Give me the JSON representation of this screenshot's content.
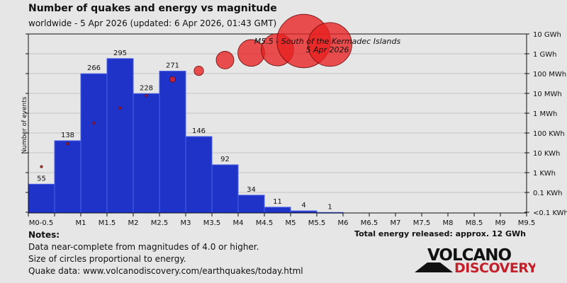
{
  "header": {
    "title": "Number of quakes and energy vs magnitude",
    "subtitle": "worldwide -  5 Apr 2026 (updated: 6 Apr 2026, 01:43 GMT)"
  },
  "notes": {
    "heading": "Notes:",
    "lines": [
      "Data near-complete from magnitudes of 4.0 or higher.",
      "Size of circles proportional to energy.",
      "Quake data: www.volcanodiscovery.com/earthquakes/today.html"
    ]
  },
  "total_energy": "Total energy released: approx. 12 GWh",
  "logo": {
    "top": "VOLCANO",
    "bottom": "DISCOVERY"
  },
  "colors": {
    "bar": "#1f33c8",
    "bar_edge": "#4a62e8",
    "circle": "#e82020",
    "circle_edge": "#6a0a0a",
    "logo_red": "#c4202c"
  },
  "chart_data": {
    "type": "bar",
    "title": "Number of quakes and energy vs magnitude",
    "ylabel": "Number of events",
    "ylim": [
      0,
      342
    ],
    "x_ticks": [
      "M0-0.5",
      "M1",
      "M1.5",
      "M2",
      "M2.5",
      "M3",
      "M3.5",
      "M4",
      "M4.5",
      "M5",
      "M5.5",
      "M6",
      "M6.5",
      "M7",
      "M7.5",
      "M8",
      "M8.5",
      "M9",
      "M9.5"
    ],
    "bins": [
      "0-0.5",
      "0.5-1",
      "1-1.5",
      "1.5-2",
      "2-2.5",
      "2.5-3",
      "3-3.5",
      "3.5-4",
      "4-4.5",
      "4.5-5",
      "5-5.5",
      "5.5-6"
    ],
    "counts": [
      55,
      138,
      266,
      295,
      228,
      271,
      146,
      92,
      34,
      11,
      4,
      1
    ],
    "energy_series": {
      "name": "Energy (Wh)",
      "values_Wh": [
        2000,
        29000,
        316000,
        1800000,
        7800000,
        51000000,
        138000000,
        480000000,
        1100000000,
        1600000000,
        4400000000,
        2950000000
      ]
    },
    "y2_ticks": [
      "10 GWh",
      "1 GWh",
      "100 MWh",
      "10 MWh",
      "1 MWh",
      "100 KWh",
      "10 KWh",
      "1 KWh",
      "0.1 KWh",
      "<0.1 KWh"
    ],
    "annotation": {
      "line1": "M5.5 - South of the Kermadec Islands",
      "line2": "5 Apr 2026"
    },
    "grid": true
  }
}
